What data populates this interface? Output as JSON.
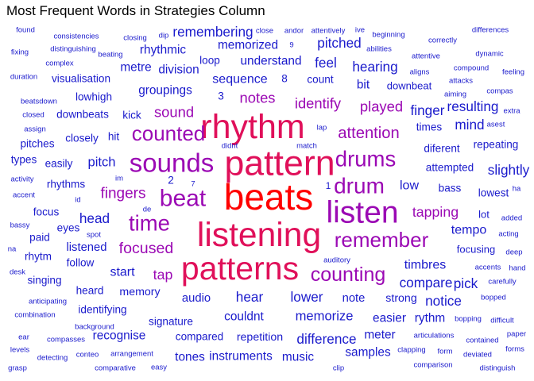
{
  "chart_data": {
    "type": "wordcloud",
    "title": "Most Frequent Words in Strategies Column",
    "colors": {
      "low": "#1a1acc",
      "mid": "#9b09b4",
      "high": "#e0105a",
      "top": "#ff0000"
    },
    "words": [
      {
        "word": "beats",
        "weight": 100
      },
      {
        "word": "pattern",
        "weight": 86
      },
      {
        "word": "listening",
        "weight": 82
      },
      {
        "word": "rhythm",
        "weight": 78
      },
      {
        "word": "patterns",
        "weight": 74
      },
      {
        "word": "listen",
        "weight": 70
      },
      {
        "word": "sounds",
        "weight": 58
      },
      {
        "word": "beat",
        "weight": 52
      },
      {
        "word": "drum",
        "weight": 48
      },
      {
        "word": "drums",
        "weight": 47
      },
      {
        "word": "time",
        "weight": 47
      },
      {
        "word": "counted",
        "weight": 44
      },
      {
        "word": "remember",
        "weight": 44
      },
      {
        "word": "counting",
        "weight": 42
      },
      {
        "word": "attention",
        "weight": 37
      },
      {
        "word": "focused",
        "weight": 36
      },
      {
        "word": "fingers",
        "weight": 35
      },
      {
        "word": "identify",
        "weight": 34
      },
      {
        "word": "sound",
        "weight": 34
      },
      {
        "word": "notes",
        "weight": 34
      },
      {
        "word": "played",
        "weight": 34
      },
      {
        "word": "tapping",
        "weight": 33
      },
      {
        "word": "tap",
        "weight": 33
      },
      {
        "word": "head",
        "weight": 32
      },
      {
        "word": "lower",
        "weight": 32
      },
      {
        "word": "hear",
        "weight": 32
      },
      {
        "word": "pitch",
        "weight": 31
      },
      {
        "word": "memorize",
        "weight": 31
      },
      {
        "word": "sequence",
        "weight": 30
      },
      {
        "word": "low",
        "weight": 30
      },
      {
        "word": "start",
        "weight": 30
      },
      {
        "word": "tempo",
        "weight": 30
      },
      {
        "word": "timbres",
        "weight": 30
      },
      {
        "word": "groupings",
        "weight": 29
      },
      {
        "word": "understand",
        "weight": 29
      },
      {
        "word": "couldnt",
        "weight": 29
      },
      {
        "word": "audio",
        "weight": 28
      },
      {
        "word": "note",
        "weight": 28
      },
      {
        "word": "listened",
        "weight": 28
      },
      {
        "word": "strong",
        "weight": 27
      },
      {
        "word": "repetition",
        "weight": 27
      },
      {
        "word": "memory",
        "weight": 27
      },
      {
        "word": "signature",
        "weight": 26
      },
      {
        "word": "bass",
        "weight": 26
      },
      {
        "word": "count",
        "weight": 26
      },
      {
        "word": "kick",
        "weight": 26
      },
      {
        "word": "attempted",
        "weight": 26
      },
      {
        "word": "rhythms",
        "weight": 26
      },
      {
        "word": "diferent",
        "weight": 26
      },
      {
        "word": "times",
        "weight": 26
      },
      {
        "word": "hit",
        "weight": 26
      },
      {
        "word": "focusing",
        "weight": 25
      },
      {
        "word": "downbeat",
        "weight": 25
      },
      {
        "word": "lot",
        "weight": 25
      },
      {
        "word": "finger",
        "weight": 24
      },
      {
        "word": "pitched",
        "weight": 24
      },
      {
        "word": "resulting",
        "weight": 24
      },
      {
        "word": "difference",
        "weight": 24
      },
      {
        "word": "feel",
        "weight": 24
      },
      {
        "word": "mind",
        "weight": 24
      },
      {
        "word": "pick",
        "weight": 24
      },
      {
        "word": "compare",
        "weight": 24
      },
      {
        "word": "remembering",
        "weight": 24
      },
      {
        "word": "notice",
        "weight": 24
      },
      {
        "word": "hearing",
        "weight": 24
      },
      {
        "word": "slightly",
        "weight": 24
      },
      {
        "word": "tones",
        "weight": 23
      },
      {
        "word": "instruments",
        "weight": 23
      },
      {
        "word": "music",
        "weight": 23
      },
      {
        "word": "samples",
        "weight": 23
      },
      {
        "word": "easier",
        "weight": 23
      },
      {
        "word": "rythm",
        "weight": 23
      },
      {
        "word": "meter",
        "weight": 23
      },
      {
        "word": "recognise",
        "weight": 23
      },
      {
        "word": "division",
        "weight": 23
      },
      {
        "word": "metre",
        "weight": 23
      },
      {
        "word": "rhythmic",
        "weight": 23
      },
      {
        "word": "memorized",
        "weight": 23
      },
      {
        "word": "bit",
        "weight": 23
      },
      {
        "word": "closely",
        "weight": 22
      },
      {
        "word": "downbeats",
        "weight": 22
      },
      {
        "word": "identifying",
        "weight": 22
      },
      {
        "word": "heard",
        "weight": 22
      },
      {
        "word": "compared",
        "weight": 22
      },
      {
        "word": "lowhigh",
        "weight": 22
      },
      {
        "word": "visualisation",
        "weight": 22
      },
      {
        "word": "easily",
        "weight": 22
      },
      {
        "word": "eyes",
        "weight": 22
      },
      {
        "word": "follow",
        "weight": 22
      },
      {
        "word": "paid",
        "weight": 22
      },
      {
        "word": "rhytm",
        "weight": 22
      },
      {
        "word": "singing",
        "weight": 22
      },
      {
        "word": "focus",
        "weight": 22
      },
      {
        "word": "pitches",
        "weight": 22
      },
      {
        "word": "types",
        "weight": 22
      },
      {
        "word": "repeating",
        "weight": 22
      },
      {
        "word": "lowest",
        "weight": 22
      },
      {
        "word": "loop",
        "weight": 22
      },
      {
        "word": "2",
        "weight": 22
      },
      {
        "word": "8",
        "weight": 22
      },
      {
        "word": "3",
        "weight": 22
      },
      {
        "word": "1",
        "weight": 21
      },
      {
        "word": "found",
        "weight": 20
      },
      {
        "word": "consistencies",
        "weight": 20
      },
      {
        "word": "closing",
        "weight": 20
      },
      {
        "word": "dip",
        "weight": 20
      },
      {
        "word": "close",
        "weight": 20
      },
      {
        "word": "andor",
        "weight": 20
      },
      {
        "word": "attentively",
        "weight": 20
      },
      {
        "word": "ive",
        "weight": 20
      },
      {
        "word": "beginning",
        "weight": 20
      },
      {
        "word": "correctly",
        "weight": 20
      },
      {
        "word": "differences",
        "weight": 20
      },
      {
        "word": "fixing",
        "weight": 20
      },
      {
        "word": "distinguishing",
        "weight": 20
      },
      {
        "word": "beating",
        "weight": 20
      },
      {
        "word": "9",
        "weight": 20
      },
      {
        "word": "abilities",
        "weight": 20
      },
      {
        "word": "attentive",
        "weight": 20
      },
      {
        "word": "dynamic",
        "weight": 20
      },
      {
        "word": "complex",
        "weight": 20
      },
      {
        "word": "aligns",
        "weight": 20
      },
      {
        "word": "compound",
        "weight": 20
      },
      {
        "word": "duration",
        "weight": 20
      },
      {
        "word": "feeling",
        "weight": 20
      },
      {
        "word": "attacks",
        "weight": 20
      },
      {
        "word": "compas",
        "weight": 20
      },
      {
        "word": "aiming",
        "weight": 20
      },
      {
        "word": "beatsdown",
        "weight": 20
      },
      {
        "word": "extra",
        "weight": 20
      },
      {
        "word": "closed",
        "weight": 20
      },
      {
        "word": "assign",
        "weight": 20
      },
      {
        "word": "lap",
        "weight": 20
      },
      {
        "word": "asest",
        "weight": 20
      },
      {
        "word": "didnt",
        "weight": 20
      },
      {
        "word": "match",
        "weight": 20
      },
      {
        "word": "activity",
        "weight": 20
      },
      {
        "word": "im",
        "weight": 20
      },
      {
        "word": "7",
        "weight": 20
      },
      {
        "word": "accent",
        "weight": 20
      },
      {
        "word": "id",
        "weight": 20
      },
      {
        "word": "ha",
        "weight": 20
      },
      {
        "word": "de",
        "weight": 20
      },
      {
        "word": "added",
        "weight": 20
      },
      {
        "word": "bassy",
        "weight": 20
      },
      {
        "word": "acting",
        "weight": 20
      },
      {
        "word": "spot",
        "weight": 20
      },
      {
        "word": "na",
        "weight": 20
      },
      {
        "word": "deep",
        "weight": 20
      },
      {
        "word": "accents",
        "weight": 20
      },
      {
        "word": "hand",
        "weight": 20
      },
      {
        "word": "desk",
        "weight": 20
      },
      {
        "word": "auditory",
        "weight": 20
      },
      {
        "word": "carefully",
        "weight": 20
      },
      {
        "word": "bopped",
        "weight": 20
      },
      {
        "word": "anticipating",
        "weight": 20
      },
      {
        "word": "combination",
        "weight": 20
      },
      {
        "word": "background",
        "weight": 20
      },
      {
        "word": "bopping",
        "weight": 20
      },
      {
        "word": "difficult",
        "weight": 20
      },
      {
        "word": "ear",
        "weight": 20
      },
      {
        "word": "compasses",
        "weight": 20
      },
      {
        "word": "articulations",
        "weight": 20
      },
      {
        "word": "contained",
        "weight": 20
      },
      {
        "word": "paper",
        "weight": 20
      },
      {
        "word": "levels",
        "weight": 20
      },
      {
        "word": "detecting",
        "weight": 20
      },
      {
        "word": "conteo",
        "weight": 20
      },
      {
        "word": "arrangement",
        "weight": 20
      },
      {
        "word": "clapping",
        "weight": 20
      },
      {
        "word": "form",
        "weight": 20
      },
      {
        "word": "deviated",
        "weight": 20
      },
      {
        "word": "forms",
        "weight": 20
      },
      {
        "word": "grasp",
        "weight": 20
      },
      {
        "word": "comparative",
        "weight": 20
      },
      {
        "word": "easy",
        "weight": 20
      },
      {
        "word": "clip",
        "weight": 20
      },
      {
        "word": "comparison",
        "weight": 20
      },
      {
        "word": "distinguish",
        "weight": 20
      }
    ]
  }
}
